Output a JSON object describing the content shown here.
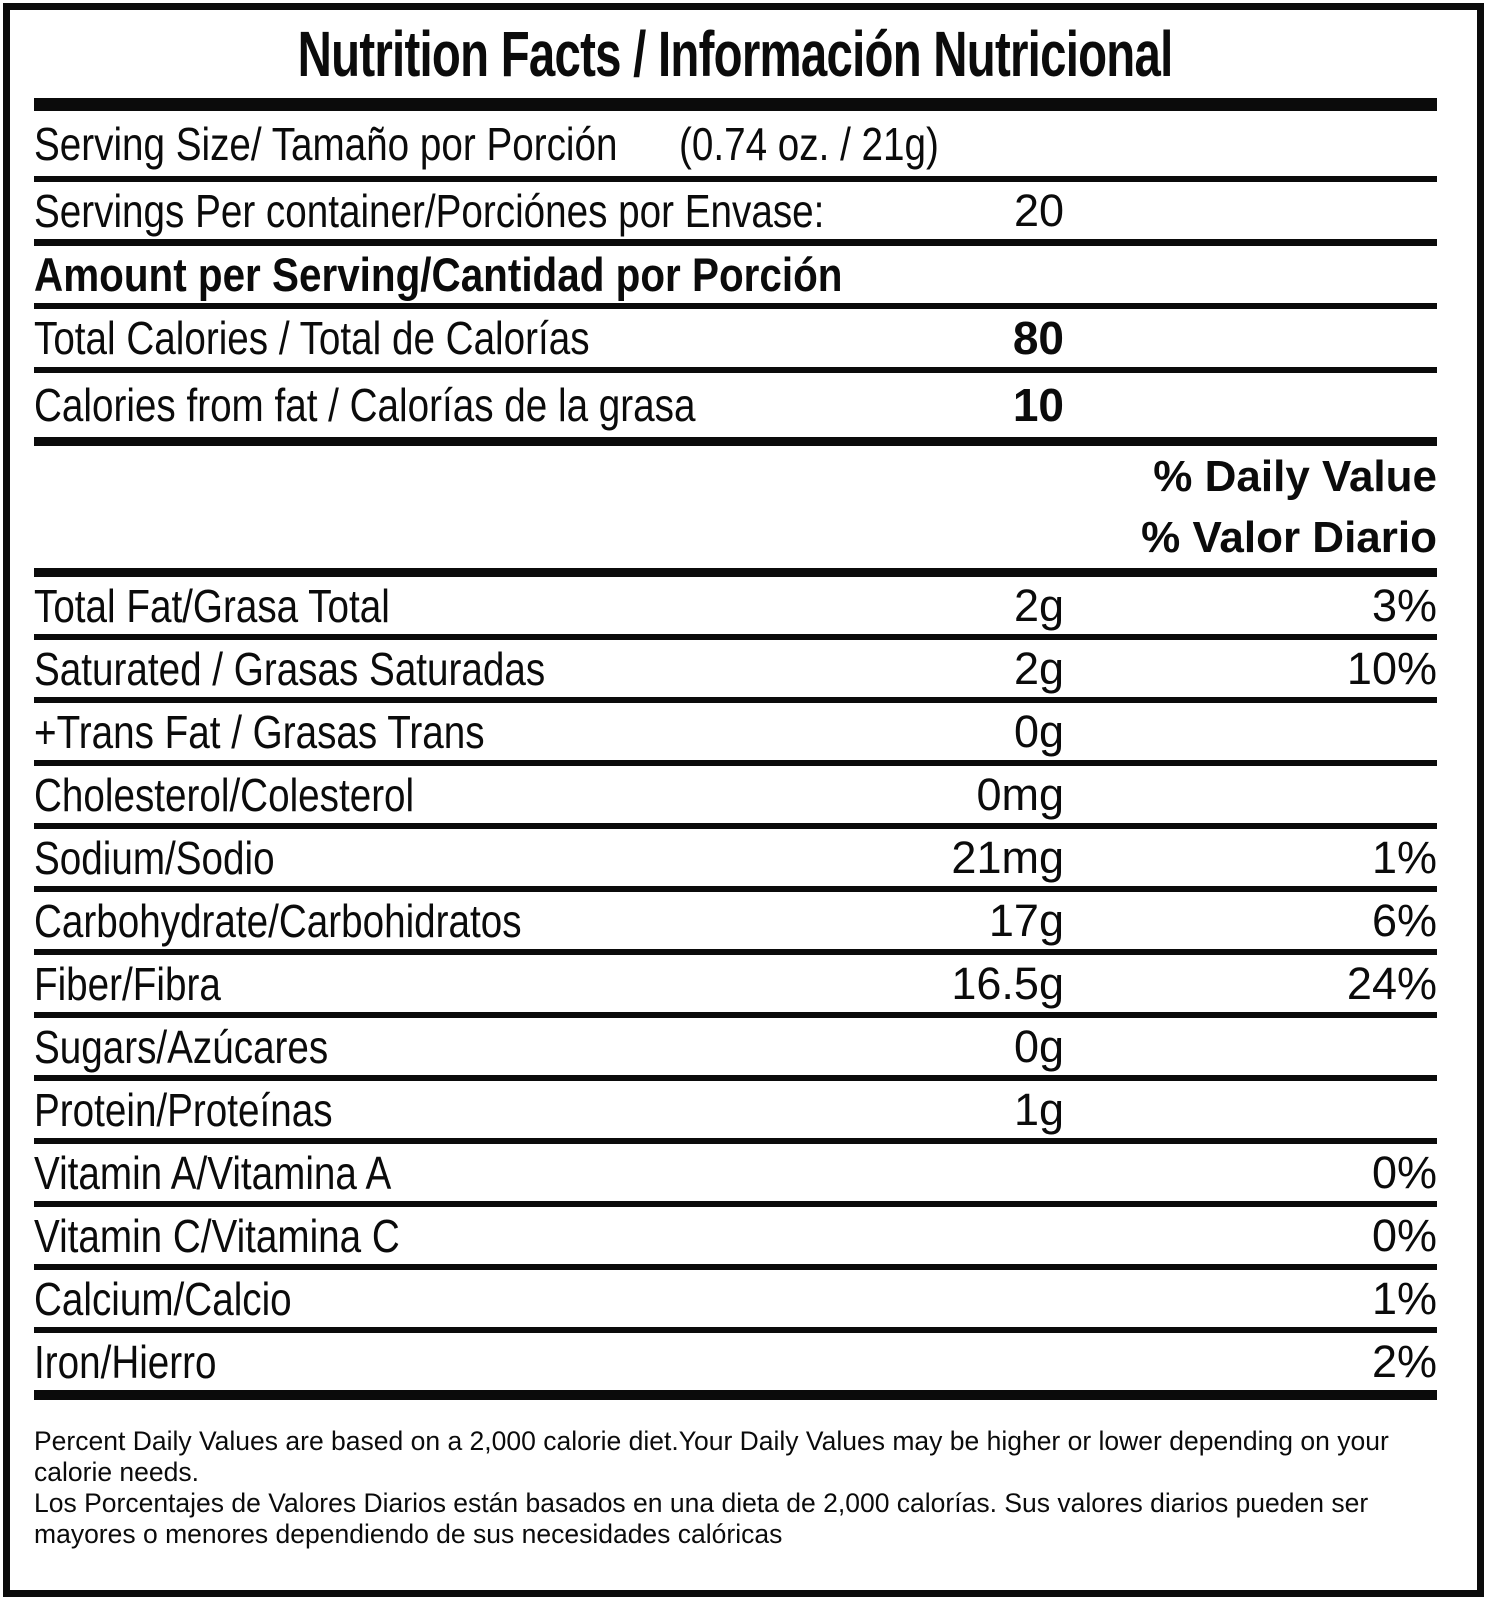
{
  "title": "Nutrition Facts / Información Nutricional",
  "serving_size": {
    "label": "Serving Size/ Tamaño por Porción",
    "value": "(0.74 oz. / 21g)"
  },
  "servings_per_container": {
    "label": "Servings Per container/Porciónes por Envase:",
    "value": "20"
  },
  "amount_per_serving_header": "Amount per Serving/Cantidad por Porción",
  "calories_rows": [
    {
      "label": "Total Calories / Total de Calorías",
      "value": "80"
    },
    {
      "label": "Calories from fat / Calorías de la grasa",
      "value": "10"
    }
  ],
  "daily_value_header": [
    "% Daily Value",
    "% Valor Diario"
  ],
  "nutrient_rows": [
    {
      "label": "Total Fat/Grasa Total",
      "amount": "2g",
      "dv": "3%"
    },
    {
      "label": "Saturated / Grasas Saturadas",
      "amount": "2g",
      "dv": "10%"
    },
    {
      "label": "+Trans Fat / Grasas Trans",
      "amount": "0g",
      "dv": ""
    },
    {
      "label": "Cholesterol/Colesterol",
      "amount": "0mg",
      "dv": ""
    },
    {
      "label": "Sodium/Sodio",
      "amount": "21mg",
      "dv": "1%"
    },
    {
      "label": "Carbohydrate/Carbohidratos",
      "amount": "17g",
      "dv": "6%"
    },
    {
      "label": "Fiber/Fibra",
      "amount": "16.5g",
      "dv": "24%"
    },
    {
      "label": "Sugars/Azúcares",
      "amount": "0g",
      "dv": ""
    },
    {
      "label": "Protein/Proteínas",
      "amount": "1g",
      "dv": ""
    },
    {
      "label": "Vitamin A/Vitamina A",
      "amount": "",
      "dv": "0%"
    },
    {
      "label": "Vitamin C/Vitamina C",
      "amount": "",
      "dv": "0%"
    },
    {
      "label": "Calcium/Calcio",
      "amount": "",
      "dv": "1%"
    },
    {
      "label": "Iron/Hierro",
      "amount": "",
      "dv": "2%"
    }
  ],
  "footnote": {
    "en": "Percent Daily Values are based on a 2,000 calorie diet.Your Daily Values may be higher or lower depending on your calorie needs.",
    "es": "Los Porcentajes de Valores Diarios están basados en una dieta de 2,000 calorías. Sus valores diarios pueden ser mayores o menores dependiendo de sus necesidades calóricas"
  },
  "colors": {
    "ink": "#0b0b0b",
    "background": "#ffffff"
  }
}
